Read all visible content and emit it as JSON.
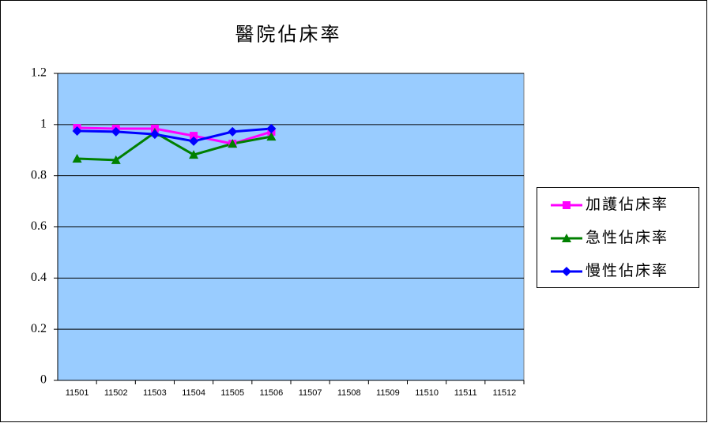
{
  "chart_data": {
    "type": "line",
    "title": "醫院佔床率",
    "categories": [
      "11501",
      "11502",
      "11503",
      "11504",
      "11505",
      "11506",
      "11507",
      "11508",
      "11509",
      "11510",
      "11511",
      "11512"
    ],
    "series": [
      {
        "name": "加護佔床率",
        "color": "#ff00ff",
        "marker": "square",
        "values": [
          0.987,
          0.984,
          0.984,
          0.956,
          0.925,
          0.972,
          null,
          null,
          null,
          null,
          null,
          null
        ]
      },
      {
        "name": "急性佔床率",
        "color": "#008000",
        "marker": "triangle",
        "values": [
          0.867,
          0.861,
          0.969,
          0.882,
          0.925,
          0.953,
          null,
          null,
          null,
          null,
          null,
          null
        ]
      },
      {
        "name": "慢性佔床率",
        "color": "#0000ff",
        "marker": "diamond",
        "values": [
          0.975,
          0.972,
          0.962,
          0.935,
          0.972,
          0.984,
          null,
          null,
          null,
          null,
          null,
          null
        ]
      }
    ],
    "ylim": [
      0,
      1.2
    ],
    "yticks": [
      0,
      0.2,
      0.4,
      0.6,
      0.8,
      1,
      1.2
    ],
    "grid": true,
    "plot_background": "#99ccff",
    "legend": "right"
  }
}
